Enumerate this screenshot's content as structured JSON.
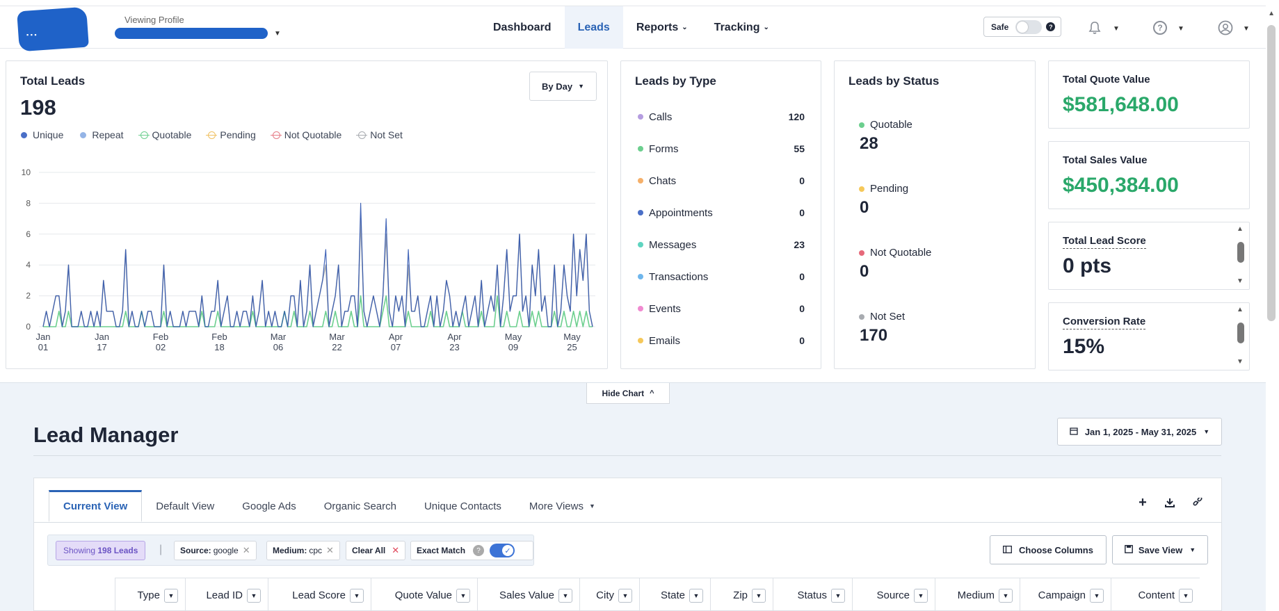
{
  "header": {
    "profile_label": "Viewing Profile",
    "nav": [
      {
        "label": "Dashboard",
        "active": false,
        "caret": false
      },
      {
        "label": "Leads",
        "active": true,
        "caret": false
      },
      {
        "label": "Reports",
        "active": false,
        "caret": true
      },
      {
        "label": "Tracking",
        "active": false,
        "caret": true
      }
    ],
    "safe_label": "Safe",
    "icons": [
      "bell-icon",
      "help-icon",
      "user-icon"
    ]
  },
  "total_leads": {
    "title": "Total Leads",
    "value": "198",
    "group_by": "By Day",
    "legend": [
      {
        "label": "Unique",
        "color": "#4a6fc7",
        "style": "dot"
      },
      {
        "label": "Repeat",
        "color": "#94b4e6",
        "style": "dot"
      },
      {
        "label": "Quotable",
        "color": "#6ccf8e",
        "style": "ring"
      },
      {
        "label": "Pending",
        "color": "#f0c060",
        "style": "ring"
      },
      {
        "label": "Not Quotable",
        "color": "#e67a85",
        "style": "ring"
      },
      {
        "label": "Not Set",
        "color": "#a8abb0",
        "style": "ring"
      }
    ]
  },
  "chart_data": {
    "type": "line",
    "y_ticks": [
      "0",
      "2",
      "4",
      "6",
      "8",
      "10"
    ],
    "ylim": [
      0,
      10
    ],
    "x_ticks": [
      [
        "Jan",
        "01"
      ],
      [
        "Jan",
        "17"
      ],
      [
        "Feb",
        "02"
      ],
      [
        "Feb",
        "18"
      ],
      [
        "Mar",
        "06"
      ],
      [
        "Mar",
        "22"
      ],
      [
        "Apr",
        "07"
      ],
      [
        "Apr",
        "23"
      ],
      [
        "May",
        "09"
      ],
      [
        "May",
        "25"
      ]
    ],
    "x_start": "2025-01-01",
    "x_end": "2025-05-31",
    "series": [
      {
        "name": "Unique",
        "color": "#2f55b0",
        "values": [
          0,
          1,
          0,
          1,
          2,
          2,
          0,
          1,
          4,
          0,
          0,
          0,
          1,
          0,
          0,
          1,
          0,
          1,
          0,
          3,
          1,
          1,
          1,
          0,
          0,
          1,
          5,
          0,
          1,
          0,
          0,
          1,
          0,
          1,
          1,
          0,
          0,
          0,
          4,
          0,
          1,
          0,
          0,
          0,
          1,
          0,
          1,
          1,
          1,
          0,
          2,
          0,
          0,
          1,
          1,
          3,
          0,
          1,
          2,
          0,
          0,
          1,
          0,
          1,
          1,
          0,
          2,
          0,
          1,
          3,
          0,
          1,
          0,
          1,
          0,
          0,
          1,
          0,
          2,
          2,
          0,
          3,
          0,
          1,
          4,
          0,
          1,
          2,
          3,
          5,
          0,
          1,
          2,
          4,
          0,
          1,
          1,
          2,
          2,
          0,
          8,
          1,
          0,
          1,
          2,
          1,
          0,
          2,
          7,
          1,
          0,
          2,
          1,
          2,
          0,
          5,
          1,
          1,
          2,
          0,
          0,
          1,
          2,
          0,
          2,
          0,
          1,
          3,
          2,
          0,
          1,
          0,
          1,
          2,
          0,
          1,
          2,
          0,
          3,
          0,
          1,
          2,
          1,
          4,
          0,
          2,
          5,
          1,
          2,
          2,
          6,
          1,
          2,
          0,
          4,
          2,
          5,
          1,
          2,
          0,
          0,
          4,
          0,
          1,
          4,
          2,
          1,
          6,
          2,
          5,
          3,
          6,
          1,
          0
        ]
      },
      {
        "name": "Not Set",
        "color": "#a8abb0",
        "values": [
          0,
          1,
          0,
          1,
          2,
          2,
          0,
          1,
          4,
          0,
          0,
          0,
          1,
          0,
          0,
          1,
          0,
          1,
          0,
          3,
          1,
          1,
          1,
          0,
          0,
          1,
          5,
          0,
          1,
          0,
          0,
          1,
          0,
          1,
          1,
          0,
          0,
          0,
          4,
          0,
          1,
          0,
          0,
          0,
          1,
          0,
          1,
          1,
          1,
          0,
          2,
          0,
          0,
          1,
          1,
          3,
          0,
          1,
          2,
          0,
          0,
          1,
          0,
          1,
          1,
          0,
          2,
          0,
          1,
          3,
          0,
          1,
          0,
          1,
          0,
          0,
          1,
          0,
          2,
          2,
          0,
          3,
          0,
          1,
          4,
          0,
          1,
          2,
          3,
          4,
          0,
          1,
          2,
          4,
          0,
          1,
          1,
          2,
          2,
          0,
          7,
          1,
          0,
          1,
          2,
          1,
          0,
          2,
          6,
          1,
          0,
          2,
          1,
          2,
          0,
          4,
          1,
          1,
          2,
          0,
          0,
          1,
          2,
          0,
          2,
          0,
          1,
          3,
          2,
          0,
          1,
          0,
          1,
          2,
          0,
          1,
          2,
          0,
          3,
          0,
          1,
          2,
          1,
          4,
          0,
          2,
          5,
          1,
          2,
          2,
          6,
          1,
          2,
          0,
          4,
          2,
          5,
          1,
          2,
          0,
          0,
          4,
          0,
          1,
          4,
          2,
          1,
          6,
          2,
          5,
          3,
          6,
          1,
          0
        ]
      },
      {
        "name": "Quotable",
        "color": "#6ccf8e",
        "values": [
          0,
          0,
          0,
          0,
          0,
          1,
          0,
          0,
          1,
          0,
          0,
          0,
          0,
          0,
          0,
          0,
          0,
          0,
          0,
          0,
          0,
          0,
          0,
          0,
          0,
          0,
          1,
          0,
          0,
          0,
          0,
          1,
          0,
          0,
          0,
          0,
          0,
          0,
          1,
          0,
          0,
          0,
          0,
          0,
          0,
          0,
          0,
          0,
          0,
          0,
          1,
          0,
          0,
          0,
          0,
          1,
          0,
          0,
          0,
          0,
          0,
          0,
          0,
          0,
          0,
          0,
          1,
          0,
          0,
          0,
          0,
          0,
          0,
          0,
          0,
          0,
          1,
          0,
          0,
          1,
          0,
          0,
          0,
          0,
          1,
          0,
          0,
          0,
          0,
          1,
          0,
          0,
          1,
          0,
          0,
          0,
          0,
          1,
          0,
          0,
          2,
          0,
          0,
          0,
          0,
          0,
          0,
          1,
          2,
          0,
          0,
          0,
          0,
          0,
          0,
          1,
          0,
          0,
          0,
          0,
          0,
          0,
          1,
          0,
          0,
          0,
          0,
          1,
          0,
          0,
          0,
          0,
          1,
          0,
          0,
          0,
          0,
          0,
          1,
          0,
          0,
          0,
          0,
          2,
          0,
          0,
          1,
          0,
          0,
          0,
          1,
          0,
          0,
          0,
          1,
          0,
          1,
          0,
          0,
          0,
          0,
          1,
          0,
          0,
          1,
          0,
          0,
          1,
          0,
          1,
          0,
          1,
          0,
          0
        ]
      }
    ]
  },
  "leads_by_type": {
    "title": "Leads by Type",
    "items": [
      {
        "label": "Calls",
        "value": "120",
        "color": "#b59de0"
      },
      {
        "label": "Forms",
        "value": "55",
        "color": "#6ccf8e"
      },
      {
        "label": "Chats",
        "value": "0",
        "color": "#f5b06a"
      },
      {
        "label": "Appointments",
        "value": "0",
        "color": "#4a6fc7"
      },
      {
        "label": "Messages",
        "value": "23",
        "color": "#5fd4c0"
      },
      {
        "label": "Transactions",
        "value": "0",
        "color": "#6fb6ec"
      },
      {
        "label": "Events",
        "value": "0",
        "color": "#f08ad0"
      },
      {
        "label": "Emails",
        "value": "0",
        "color": "#f5c85a"
      }
    ]
  },
  "leads_by_status": {
    "title": "Leads by Status",
    "items": [
      {
        "label": "Quotable",
        "value": "28",
        "color": "#6ccf8e"
      },
      {
        "label": "Pending",
        "value": "0",
        "color": "#f5c85a"
      },
      {
        "label": "Not Quotable",
        "value": "0",
        "color": "#e6697a"
      },
      {
        "label": "Not Set",
        "value": "170",
        "color": "#a8abb0"
      }
    ]
  },
  "metrics": [
    {
      "title": "Total Quote Value",
      "value": "$581,648.00",
      "green": true,
      "dashed": false
    },
    {
      "title": "Total Sales Value",
      "value": "$450,384.00",
      "green": true,
      "dashed": false
    },
    {
      "title": "Total Lead Score",
      "value": "0 pts",
      "green": false,
      "dashed": true
    },
    {
      "title": "Conversion Rate",
      "value": "15%",
      "green": false,
      "dashed": true
    }
  ],
  "hide_chart_label": "Hide Chart",
  "lead_manager": {
    "title": "Lead Manager",
    "date_range": "Jan 1, 2025 - May 31, 2025",
    "tabs": [
      "Current View",
      "Default View",
      "Google Ads",
      "Organic Search",
      "Unique Contacts",
      "More Views"
    ],
    "showing_prefix": "Showing",
    "showing_count": "198 Leads",
    "filters": [
      {
        "key": "Source:",
        "value": "google"
      },
      {
        "key": "Medium:",
        "value": "cpc"
      }
    ],
    "clear_all": "Clear All",
    "exact_match": "Exact Match",
    "choose_columns": "Choose Columns",
    "save_view": "Save View",
    "columns": [
      "Type",
      "Lead ID",
      "Lead Score",
      "Quote Value",
      "Sales Value",
      "City",
      "State",
      "Zip",
      "Status",
      "Source",
      "Medium",
      "Campaign",
      "Content"
    ]
  }
}
